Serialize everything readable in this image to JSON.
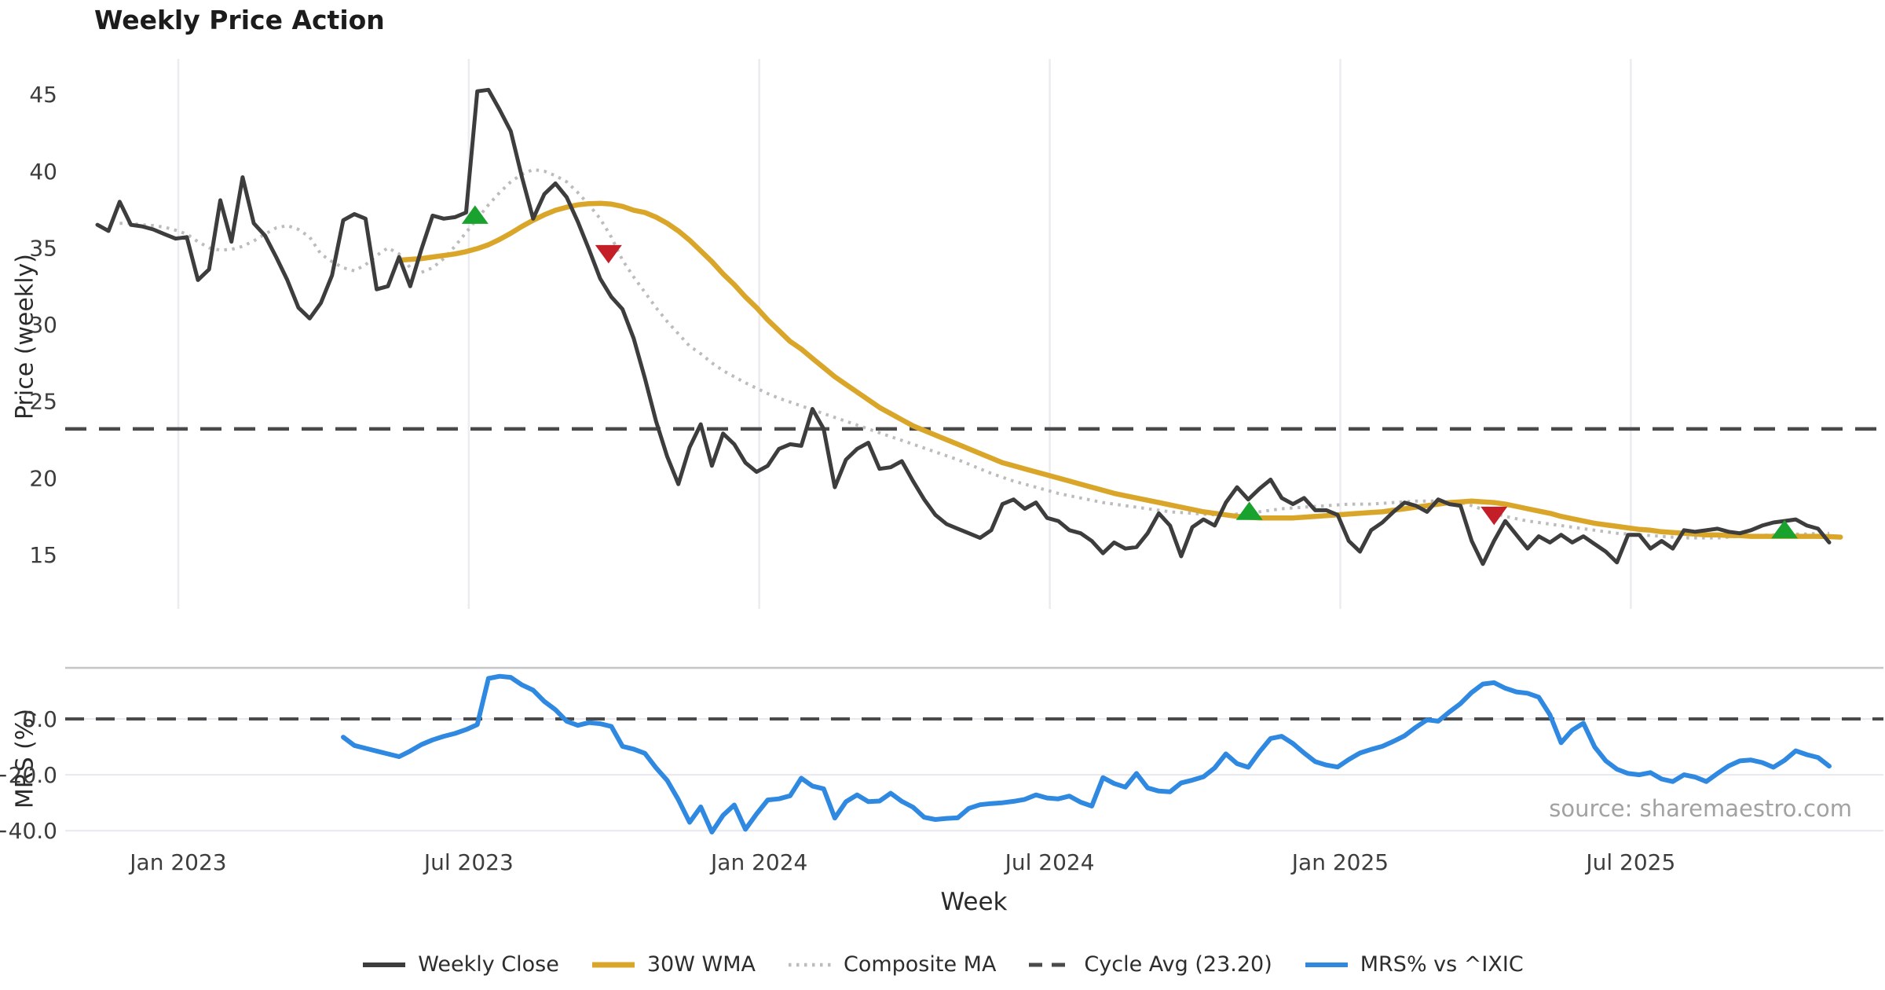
{
  "title": "Weekly Price Action",
  "source": "source: sharemaestro.com",
  "colors": {
    "weekly_close": "#3d3d3d",
    "wma": "#d9a62a",
    "composite": "#bcbcbc",
    "cycle_avg": "#4a4a4a",
    "mrs": "#2f89e0",
    "buy_marker": "#1aa22f",
    "sell_marker": "#c41e28",
    "grid_vertical": "#ebebf2",
    "grid_horizontal": "#e8e8ee",
    "panel_border": "#c6c6c6",
    "tick_text": "#3d3d3d"
  },
  "legend": {
    "items": [
      {
        "label": "Weekly Close",
        "series": "weekly_close"
      },
      {
        "label": "30W WMA",
        "series": "wma"
      },
      {
        "label": "Composite MA",
        "series": "composite"
      },
      {
        "label": "Cycle Avg (23.20)",
        "series": "cycle_avg"
      },
      {
        "label": "MRS% vs ^IXIC",
        "series": "mrs"
      }
    ]
  },
  "chart_data": [
    {
      "id": "price_panel",
      "type": "line",
      "xlabel": "Week",
      "ylabel": "Price (weekly)",
      "x_unit": "week_index",
      "xlim": [
        -2.74,
        159.85
      ],
      "ylim": [
        11.47,
        47.31
      ],
      "grid": "vertical-only",
      "xticks": {
        "values": [
          7.24,
          33.24,
          59.24,
          85.24,
          111.24,
          137.24
        ],
        "labels": [
          "Jan 2023",
          "Jul 2023",
          "Jan 2024",
          "Jul 2024",
          "Jan 2025",
          "Jul 2025"
        ]
      },
      "yticks": {
        "values": [
          15,
          20,
          25,
          30,
          35,
          40,
          45
        ],
        "labels": [
          "15",
          "20",
          "25",
          "30",
          "35",
          "40",
          "45"
        ]
      },
      "cycle_avg_value": 23.2,
      "series": [
        {
          "name": "Composite MA",
          "color_key": "composite",
          "style": "dotted",
          "width": 4,
          "x_start": 2,
          "values": [
            36.6,
            36.6,
            36.5,
            36.45,
            36.35,
            36.15,
            35.9,
            35.4,
            35.0,
            34.85,
            34.9,
            35.1,
            35.45,
            35.9,
            36.3,
            36.45,
            36.2,
            35.7,
            34.6,
            34.1,
            33.7,
            33.5,
            33.9,
            34.5,
            35.0,
            34.6,
            33.7,
            33.4,
            33.7,
            34.3,
            35.1,
            36.0,
            36.9,
            37.8,
            38.6,
            39.3,
            39.8,
            40.1,
            40.0,
            39.7,
            39.3,
            38.6,
            37.8,
            36.9,
            35.7,
            34.2,
            33.1,
            32.1,
            31.1,
            30.2,
            29.4,
            28.6,
            28.1,
            27.5,
            27.0,
            26.6,
            26.2,
            25.85,
            25.5,
            25.2,
            24.95,
            24.7,
            24.45,
            24.2,
            23.95,
            23.7,
            23.45,
            23.2,
            22.95,
            22.7,
            22.45,
            22.2,
            21.95,
            21.7,
            21.45,
            21.2,
            20.9,
            20.6,
            20.3,
            20.05,
            19.8,
            19.6,
            19.4,
            19.2,
            19.0,
            18.85,
            18.7,
            18.55,
            18.4,
            18.3,
            18.2,
            18.1,
            18.0,
            17.9,
            17.8,
            17.75,
            17.7,
            17.65,
            17.6,
            17.6,
            17.65,
            17.7,
            17.8,
            17.9,
            18.0,
            18.05,
            18.1,
            18.15,
            18.2,
            18.25,
            18.3,
            18.3,
            18.3,
            18.35,
            18.4,
            18.45,
            18.5,
            18.5,
            18.5,
            18.45,
            18.4,
            18.2,
            17.95,
            17.7,
            17.5,
            17.35,
            17.2,
            17.1,
            17.0,
            16.9,
            16.8,
            16.7,
            16.6,
            16.5,
            16.4,
            16.35,
            16.3,
            16.25,
            16.2,
            16.15,
            16.1,
            16.1,
            16.1,
            16.1,
            16.15,
            16.2,
            16.2,
            16.25,
            16.3,
            16.3,
            16.35,
            16.35,
            16.4,
            16.4
          ]
        },
        {
          "name": "30W WMA",
          "color_key": "wma",
          "style": "solid",
          "width": 6.5,
          "x_start": 27,
          "values": [
            34.2,
            34.25,
            34.3,
            34.4,
            34.5,
            34.6,
            34.75,
            34.95,
            35.2,
            35.55,
            35.95,
            36.4,
            36.8,
            37.15,
            37.45,
            37.65,
            37.8,
            37.88,
            37.9,
            37.85,
            37.7,
            37.45,
            37.3,
            37.0,
            36.6,
            36.1,
            35.5,
            34.8,
            34.1,
            33.3,
            32.6,
            31.8,
            31.1,
            30.3,
            29.6,
            28.9,
            28.4,
            27.8,
            27.2,
            26.6,
            26.1,
            25.6,
            25.1,
            24.6,
            24.2,
            23.8,
            23.4,
            23.1,
            22.8,
            22.5,
            22.2,
            21.9,
            21.6,
            21.3,
            21.0,
            20.8,
            20.6,
            20.4,
            20.2,
            20.0,
            19.8,
            19.6,
            19.4,
            19.2,
            19.0,
            18.85,
            18.7,
            18.55,
            18.4,
            18.25,
            18.1,
            17.95,
            17.8,
            17.7,
            17.6,
            17.5,
            17.45,
            17.4,
            17.4,
            17.4,
            17.4,
            17.45,
            17.5,
            17.55,
            17.6,
            17.65,
            17.7,
            17.75,
            17.8,
            17.9,
            18.0,
            18.1,
            18.2,
            18.3,
            18.4,
            18.45,
            18.5,
            18.45,
            18.4,
            18.3,
            18.15,
            18.0,
            17.85,
            17.7,
            17.5,
            17.35,
            17.2,
            17.05,
            16.95,
            16.85,
            16.75,
            16.65,
            16.6,
            16.5,
            16.45,
            16.4,
            16.35,
            16.3,
            16.3,
            16.25,
            16.25,
            16.2,
            16.2,
            16.2,
            16.2,
            16.2,
            16.2,
            16.2,
            16.18,
            16.15
          ]
        },
        {
          "name": "Weekly Close",
          "color_key": "weekly_close",
          "style": "solid",
          "width": 5,
          "x_start": 0,
          "values": [
            36.5,
            36.1,
            38.0,
            36.5,
            36.4,
            36.2,
            35.9,
            35.6,
            35.7,
            32.9,
            33.6,
            38.1,
            35.4,
            39.6,
            36.6,
            35.8,
            34.4,
            32.9,
            31.1,
            30.4,
            31.4,
            33.2,
            36.8,
            37.2,
            36.9,
            32.3,
            32.5,
            34.4,
            32.5,
            34.9,
            37.1,
            36.9,
            37.0,
            37.3,
            45.2,
            45.3,
            44.0,
            42.6,
            39.6,
            36.9,
            38.5,
            39.2,
            38.3,
            36.7,
            34.9,
            33.0,
            31.8,
            31.0,
            29.1,
            26.5,
            23.7,
            21.4,
            19.6,
            22.0,
            23.5,
            20.8,
            22.9,
            22.2,
            21.0,
            20.4,
            20.8,
            21.9,
            22.2,
            22.1,
            24.5,
            23.2,
            19.4,
            21.2,
            21.9,
            22.3,
            20.6,
            20.7,
            21.1,
            19.8,
            18.6,
            17.6,
            17.0,
            16.7,
            16.4,
            16.1,
            16.6,
            18.3,
            18.6,
            18.0,
            18.4,
            17.4,
            17.2,
            16.6,
            16.4,
            15.9,
            15.1,
            15.8,
            15.4,
            15.5,
            16.4,
            17.7,
            16.9,
            14.9,
            16.8,
            17.3,
            16.9,
            18.4,
            19.4,
            18.6,
            19.3,
            19.9,
            18.7,
            18.3,
            18.7,
            17.9,
            17.9,
            17.6,
            15.9,
            15.2,
            16.6,
            17.1,
            17.8,
            18.4,
            18.2,
            17.8,
            18.6,
            18.3,
            18.2,
            15.9,
            14.4,
            15.9,
            17.2,
            16.3,
            15.4,
            16.2,
            15.8,
            16.3,
            15.8,
            16.2,
            15.7,
            15.2,
            14.5,
            16.3,
            16.3,
            15.4,
            15.9,
            15.4,
            16.6,
            16.5,
            16.6,
            16.7,
            16.5,
            16.4,
            16.6,
            16.9,
            17.1,
            17.2,
            17.3,
            16.9,
            16.7,
            15.8
          ]
        }
      ],
      "markers": [
        {
          "name": "buy-signal-1",
          "shape": "triangle-up",
          "color_key": "buy_marker",
          "x": 33.8,
          "y": 37.1
        },
        {
          "name": "sell-signal-1",
          "shape": "triangle-down",
          "color_key": "sell_marker",
          "x": 45.75,
          "y": 34.65
        },
        {
          "name": "buy-signal-2",
          "shape": "triangle-up",
          "color_key": "buy_marker",
          "x": 103.1,
          "y": 17.8
        },
        {
          "name": "sell-signal-2",
          "shape": "triangle-down",
          "color_key": "sell_marker",
          "x": 125.0,
          "y": 17.6
        },
        {
          "name": "buy-signal-3",
          "shape": "triangle-up",
          "color_key": "buy_marker",
          "x": 151.0,
          "y": 16.6
        }
      ]
    },
    {
      "id": "mrs_panel",
      "type": "line",
      "xlabel": "Week",
      "ylabel": "MRS (%)",
      "x_unit": "week_index",
      "xlim": [
        -2.74,
        159.85
      ],
      "ylim": [
        -45.0,
        18.3
      ],
      "grid": "horizontal-only",
      "yticks": {
        "values": [
          0,
          -20,
          -40
        ],
        "labels": [
          "0.0",
          "−20.0",
          "−40.0"
        ]
      },
      "zero_line": 0,
      "series": [
        {
          "name": "MRS% vs ^IXIC",
          "color_key": "mrs",
          "style": "solid",
          "width": 6,
          "x_start": 22,
          "values": [
            -6.5,
            -9.5,
            -10.5,
            -11.5,
            -12.5,
            -13.5,
            -11.5,
            -9.2,
            -7.5,
            -6.2,
            -5.2,
            -3.8,
            -2.0,
            14.5,
            15.3,
            14.9,
            12.2,
            10.3,
            6.3,
            3.3,
            -0.8,
            -2.3,
            -1.3,
            -1.7,
            -2.7,
            -9.8,
            -10.8,
            -12.3,
            -17.5,
            -22.0,
            -28.9,
            -37.0,
            -31.5,
            -40.5,
            -34.5,
            -30.8,
            -39.5,
            -34.0,
            -29.0,
            -28.6,
            -27.5,
            -21.2,
            -24.0,
            -25.0,
            -35.5,
            -29.6,
            -27.2,
            -29.6,
            -29.4,
            -26.6,
            -29.5,
            -31.6,
            -35.2,
            -36.0,
            -35.6,
            -35.4,
            -32.0,
            -30.7,
            -30.3,
            -30.0,
            -29.5,
            -28.8,
            -27.2,
            -28.3,
            -28.6,
            -27.6,
            -29.8,
            -31.2,
            -21.0,
            -23.1,
            -24.4,
            -19.5,
            -24.7,
            -25.8,
            -26.1,
            -22.9,
            -21.9,
            -20.7,
            -17.5,
            -12.5,
            -16.0,
            -17.3,
            -11.8,
            -7.0,
            -6.2,
            -8.8,
            -12.2,
            -15.3,
            -16.5,
            -17.2,
            -14.5,
            -12.2,
            -10.9,
            -9.8,
            -8.0,
            -6.0,
            -3.0,
            -0.3,
            -0.8,
            2.5,
            5.5,
            9.5,
            12.5,
            13.0,
            11.0,
            9.7,
            9.2,
            7.8,
            1.5,
            -8.5,
            -4.0,
            -1.5,
            -10.0,
            -15.0,
            -18.0,
            -19.5,
            -20.0,
            -19.2,
            -21.5,
            -22.4,
            -20.0,
            -20.8,
            -22.4,
            -19.5,
            -16.8,
            -15.0,
            -14.7,
            -15.6,
            -17.3,
            -14.8,
            -11.4,
            -12.8,
            -13.8,
            -16.9
          ]
        }
      ]
    }
  ]
}
